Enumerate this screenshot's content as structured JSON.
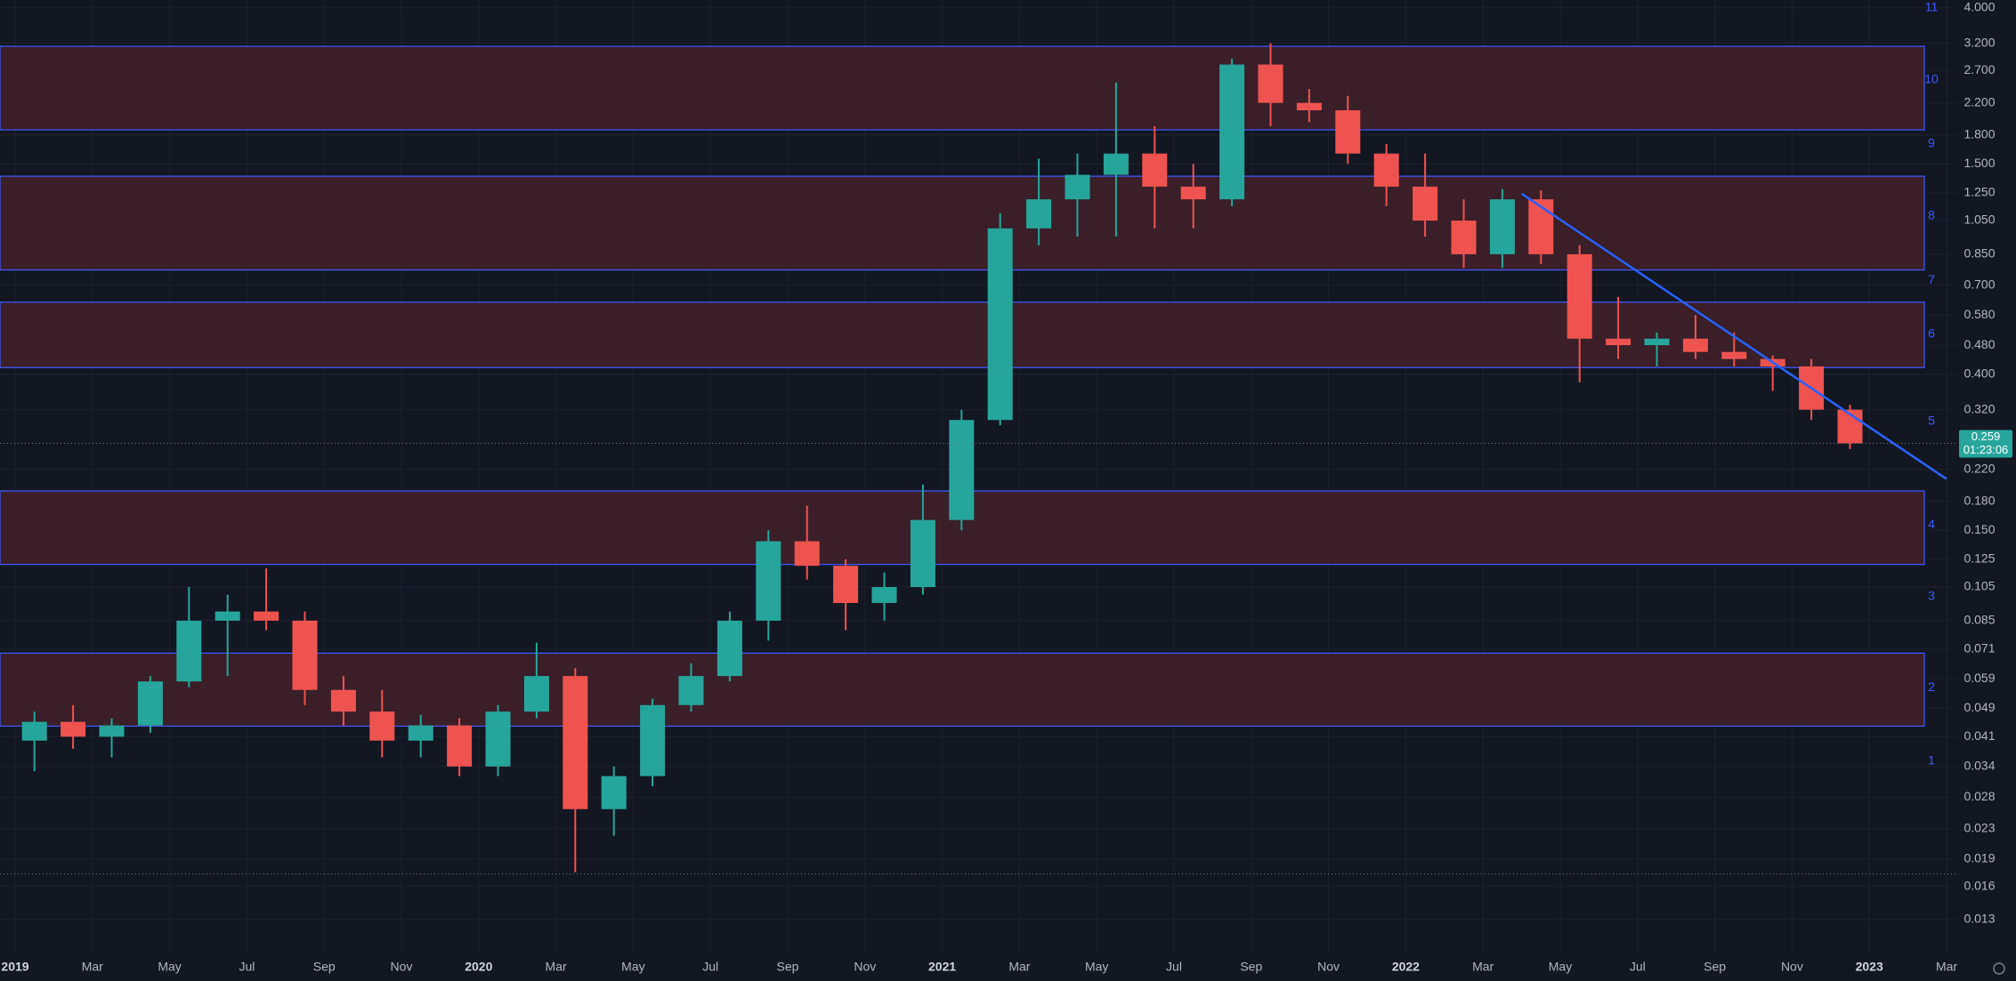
{
  "chart_data": {
    "type": "candlestick",
    "log_scale": true,
    "grid": true,
    "up_color": "#26a69a",
    "down_color": "#ef5350",
    "x": [
      "2019-01",
      "2019-02",
      "2019-03",
      "2019-04",
      "2019-05",
      "2019-06",
      "2019-07",
      "2019-08",
      "2019-09",
      "2019-10",
      "2019-11",
      "2019-12",
      "2020-01",
      "2020-02",
      "2020-03",
      "2020-04",
      "2020-05",
      "2020-06",
      "2020-07",
      "2020-08",
      "2020-09",
      "2020-10",
      "2020-11",
      "2020-12",
      "2021-01",
      "2021-02",
      "2021-03",
      "2021-04",
      "2021-05",
      "2021-06",
      "2021-07",
      "2021-08",
      "2021-09",
      "2021-10",
      "2021-11",
      "2021-12",
      "2022-01",
      "2022-02",
      "2022-03",
      "2022-04",
      "2022-05",
      "2022-06",
      "2022-07",
      "2022-08",
      "2022-09",
      "2022-10",
      "2022-11",
      "2022-12"
    ],
    "open": [
      0.04,
      0.045,
      0.041,
      0.044,
      0.058,
      0.085,
      0.09,
      0.085,
      0.055,
      0.048,
      0.04,
      0.044,
      0.034,
      0.048,
      0.06,
      0.026,
      0.032,
      0.05,
      0.06,
      0.085,
      0.14,
      0.12,
      0.095,
      0.105,
      0.16,
      0.3,
      1.0,
      1.2,
      1.4,
      1.6,
      1.3,
      1.2,
      2.8,
      2.2,
      2.1,
      1.6,
      1.3,
      1.05,
      0.85,
      1.2,
      0.85,
      0.5,
      0.48,
      0.5,
      0.46,
      0.44,
      0.42,
      0.32
    ],
    "high": [
      0.048,
      0.05,
      0.046,
      0.06,
      0.105,
      0.1,
      0.118,
      0.09,
      0.06,
      0.055,
      0.047,
      0.046,
      0.05,
      0.074,
      0.063,
      0.034,
      0.052,
      0.065,
      0.09,
      0.15,
      0.175,
      0.125,
      0.115,
      0.2,
      0.32,
      1.1,
      1.55,
      1.6,
      2.5,
      1.9,
      1.5,
      2.9,
      3.2,
      2.4,
      2.3,
      1.7,
      1.6,
      1.2,
      1.28,
      1.27,
      0.9,
      0.65,
      0.52,
      0.58,
      0.52,
      0.45,
      0.44,
      0.33
    ],
    "low": [
      0.033,
      0.038,
      0.036,
      0.042,
      0.056,
      0.06,
      0.08,
      0.05,
      0.044,
      0.036,
      0.036,
      0.032,
      0.032,
      0.046,
      0.0175,
      0.022,
      0.03,
      0.048,
      0.058,
      0.075,
      0.11,
      0.08,
      0.085,
      0.1,
      0.15,
      0.29,
      0.9,
      0.95,
      0.95,
      1.0,
      1.0,
      1.15,
      1.9,
      1.95,
      1.5,
      1.15,
      0.95,
      0.78,
      0.78,
      0.8,
      0.38,
      0.44,
      0.42,
      0.44,
      0.42,
      0.36,
      0.3,
      0.25
    ],
    "close": [
      0.045,
      0.041,
      0.044,
      0.058,
      0.085,
      0.09,
      0.085,
      0.055,
      0.048,
      0.04,
      0.044,
      0.034,
      0.048,
      0.06,
      0.026,
      0.032,
      0.05,
      0.06,
      0.085,
      0.14,
      0.12,
      0.095,
      0.105,
      0.16,
      0.3,
      1.0,
      1.2,
      1.4,
      1.6,
      1.3,
      1.2,
      2.8,
      2.2,
      2.1,
      1.6,
      1.3,
      1.05,
      0.85,
      1.2,
      0.85,
      0.5,
      0.48,
      0.5,
      0.46,
      0.44,
      0.42,
      0.32,
      0.259
    ],
    "ylim": [
      0.0105,
      4.2
    ],
    "yticks": [
      {
        "value": 4.0,
        "label": "4.000"
      },
      {
        "value": 3.2,
        "label": "3.200"
      },
      {
        "value": 2.7,
        "label": "2.700"
      },
      {
        "value": 2.2,
        "label": "2.200"
      },
      {
        "value": 1.8,
        "label": "1.800"
      },
      {
        "value": 1.5,
        "label": "1.500"
      },
      {
        "value": 1.25,
        "label": "1.250"
      },
      {
        "value": 1.05,
        "label": "1.050"
      },
      {
        "value": 0.85,
        "label": "0.850"
      },
      {
        "value": 0.7,
        "label": "0.700"
      },
      {
        "value": 0.58,
        "label": "0.580"
      },
      {
        "value": 0.48,
        "label": "0.480"
      },
      {
        "value": 0.4,
        "label": "0.400"
      },
      {
        "value": 0.32,
        "label": "0.320"
      },
      {
        "value": 0.22,
        "label": "0.220"
      },
      {
        "value": 0.18,
        "label": "0.180"
      },
      {
        "value": 0.15,
        "label": "0.150"
      },
      {
        "value": 0.125,
        "label": "0.125"
      },
      {
        "value": 0.105,
        "label": "0.105"
      },
      {
        "value": 0.085,
        "label": "0.085"
      },
      {
        "value": 0.071,
        "label": "0.071"
      },
      {
        "value": 0.059,
        "label": "0.059"
      },
      {
        "value": 0.049,
        "label": "0.049"
      },
      {
        "value": 0.041,
        "label": "0.041"
      },
      {
        "value": 0.034,
        "label": "0.034"
      },
      {
        "value": 0.028,
        "label": "0.028"
      },
      {
        "value": 0.023,
        "label": "0.023"
      },
      {
        "value": 0.019,
        "label": "0.019"
      },
      {
        "value": 0.016,
        "label": "0.016"
      },
      {
        "value": 0.013,
        "label": "0.013"
      }
    ],
    "xticks": [
      {
        "value": "2019-01",
        "label": "2019"
      },
      {
        "value": "2019-03",
        "label": "Mar"
      },
      {
        "value": "2019-05",
        "label": "May"
      },
      {
        "value": "2019-07",
        "label": "Jul"
      },
      {
        "value": "2019-09",
        "label": "Sep"
      },
      {
        "value": "2019-11",
        "label": "Nov"
      },
      {
        "value": "2020-01",
        "label": "2020"
      },
      {
        "value": "2020-03",
        "label": "Mar"
      },
      {
        "value": "2020-05",
        "label": "May"
      },
      {
        "value": "2020-07",
        "label": "Jul"
      },
      {
        "value": "2020-09",
        "label": "Sep"
      },
      {
        "value": "2020-11",
        "label": "Nov"
      },
      {
        "value": "2021-01",
        "label": "2021"
      },
      {
        "value": "2021-03",
        "label": "Mar"
      },
      {
        "value": "2021-05",
        "label": "May"
      },
      {
        "value": "2021-07",
        "label": "Jul"
      },
      {
        "value": "2021-09",
        "label": "Sep"
      },
      {
        "value": "2021-11",
        "label": "Nov"
      },
      {
        "value": "2022-01",
        "label": "2022"
      },
      {
        "value": "2022-03",
        "label": "Mar"
      },
      {
        "value": "2022-05",
        "label": "May"
      },
      {
        "value": "2022-07",
        "label": "Jul"
      },
      {
        "value": "2022-09",
        "label": "Sep"
      },
      {
        "value": "2022-11",
        "label": "Nov"
      },
      {
        "value": "2023-01",
        "label": "2023"
      },
      {
        "value": "2023-03",
        "label": "Mar"
      }
    ],
    "zones": [
      {
        "low": 1.857,
        "high": 3.14
      },
      {
        "low": 0.77,
        "high": 1.388
      },
      {
        "low": 0.417,
        "high": 0.629
      },
      {
        "low": 0.121,
        "high": 0.192
      },
      {
        "low": 0.0438,
        "high": 0.0693
      }
    ],
    "zone_fill": "#3a1f29",
    "zone_border": "#3d5afe",
    "level_labels": [
      {
        "value": 4.0,
        "label": "11"
      },
      {
        "value": 2.545,
        "label": "10"
      },
      {
        "value": 1.7,
        "label": "9"
      },
      {
        "value": 1.08,
        "label": "8"
      },
      {
        "value": 0.722,
        "label": "7"
      },
      {
        "value": 0.514,
        "label": "6"
      },
      {
        "value": 0.297,
        "label": "5"
      },
      {
        "value": 0.155,
        "label": "4"
      },
      {
        "value": 0.0989,
        "label": "3"
      },
      {
        "value": 0.0557,
        "label": "2"
      },
      {
        "value": 0.0352,
        "label": "1"
      }
    ],
    "trendline": {
      "x": [
        "2022-04",
        "2023-03"
      ],
      "y": [
        1.243,
        0.207
      ],
      "color": "#2962ff"
    },
    "last_price": 0.259,
    "countdown": "01:23:06",
    "low_line": 0.0173
  }
}
